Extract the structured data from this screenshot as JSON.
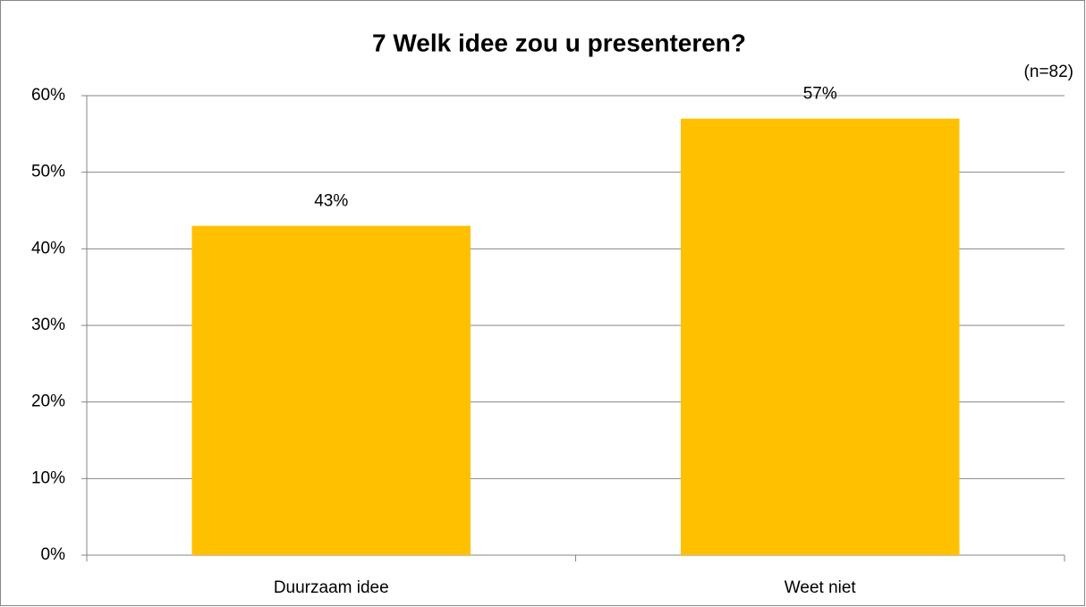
{
  "chart_data": {
    "type": "bar",
    "title": "7 Welk idee zou u presenteren?",
    "annotation": "(n=82)",
    "categories": [
      "Duurzaam idee",
      "Weet niet"
    ],
    "values": [
      43,
      57
    ],
    "value_labels": [
      "43%",
      "57%"
    ],
    "color": "#ffc000",
    "ylim": [
      0,
      60
    ],
    "yticks": [
      {
        "value": 0,
        "label": "0%"
      },
      {
        "value": 10,
        "label": "10%"
      },
      {
        "value": 20,
        "label": "20%"
      },
      {
        "value": 30,
        "label": "30%"
      },
      {
        "value": 40,
        "label": "40%"
      },
      {
        "value": 50,
        "label": "50%"
      },
      {
        "value": 60,
        "label": "60%"
      }
    ],
    "grid": true
  }
}
